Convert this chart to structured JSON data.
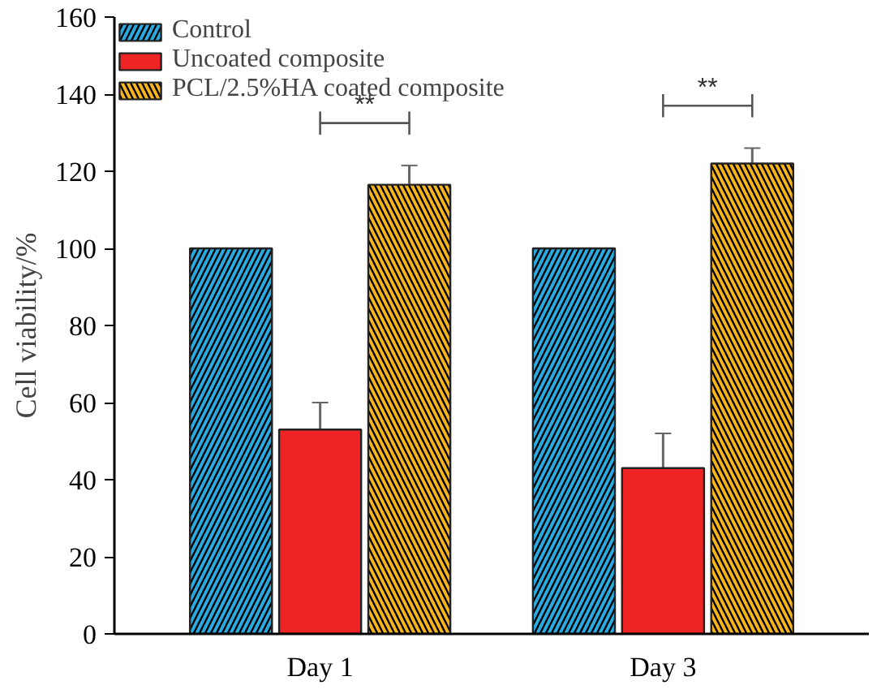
{
  "chart_data": {
    "type": "bar",
    "ylabel": "Cell viability/%",
    "categories": [
      "Day 1",
      "Day 3"
    ],
    "series": [
      {
        "name": "Control",
        "color": "#29abe2",
        "values": [
          100,
          100
        ],
        "errors": [
          null,
          null
        ]
      },
      {
        "name": "Uncoated composite",
        "color": "#ee2424",
        "values": [
          53,
          43
        ],
        "errors": [
          7,
          9
        ]
      },
      {
        "name": "PCL/2.5%HA coated composite",
        "color": "#f7b51d",
        "values": [
          116.5,
          122
        ],
        "errors": [
          5,
          4
        ]
      }
    ],
    "ylim": [
      0,
      160
    ],
    "yticks": [
      0,
      20,
      40,
      60,
      80,
      100,
      120,
      140,
      160
    ],
    "grid": false,
    "legend": "top left",
    "annotations": [
      "**",
      "**"
    ]
  }
}
